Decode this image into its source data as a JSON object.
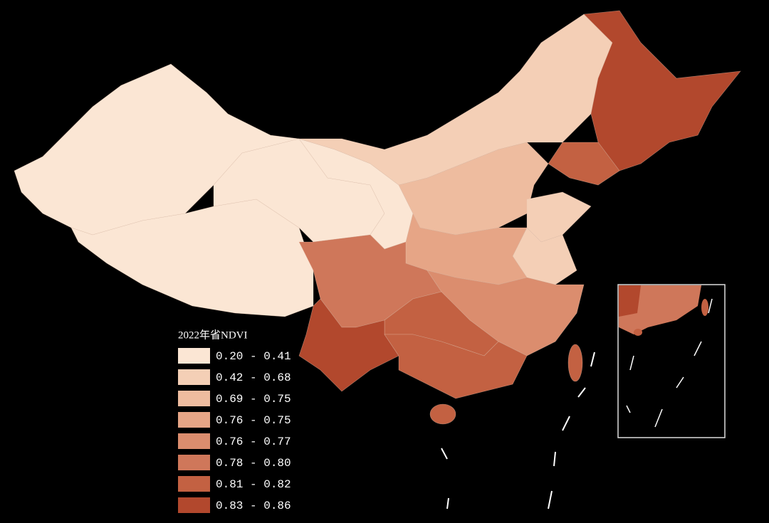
{
  "legend": {
    "title": "2022年省NDVI",
    "items": [
      {
        "label": "0.20 - 0.41",
        "color": "#fbe6d4"
      },
      {
        "label": "0.42 - 0.68",
        "color": "#f4cfb6"
      },
      {
        "label": "0.69 - 0.75",
        "color": "#eebc9f"
      },
      {
        "label": "0.76 - 0.75",
        "color": "#e6a586"
      },
      {
        "label": "0.76 - 0.77",
        "color": "#db8d6e"
      },
      {
        "label": "0.78 - 0.80",
        "color": "#cf775a"
      },
      {
        "label": "0.81 - 0.82",
        "color": "#c36142"
      },
      {
        "label": "0.83 - 0.86",
        "color": "#b2482d"
      }
    ]
  }
}
